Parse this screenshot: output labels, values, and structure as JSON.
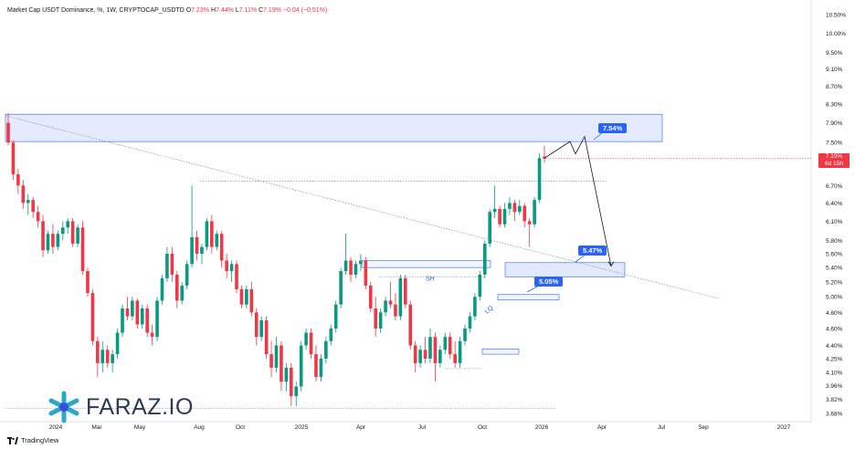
{
  "header": {
    "symbol": "Market Cap USDT Dominance, %, 1W, CRYPTOCAP_USDTD",
    "o_label": "O",
    "o_value": "7.23%",
    "h_label": "H",
    "h_value": "7.44%",
    "l_label": "L",
    "l_value": "7.11%",
    "c_label": "C",
    "c_value": "7.19%",
    "change": "−0.04 (−0.51%)"
  },
  "branding": {
    "logo_text": "FARAZ.IO",
    "tv_text": "TradingView"
  },
  "last_price": {
    "value": "7.19%",
    "countdown": "6d 15h"
  },
  "colors": {
    "up": "#089981",
    "down": "#f23645",
    "zone_fill": "#dbe4ff",
    "zone_stroke": "#2962ff",
    "callout": "#2962ff"
  },
  "chart_data": {
    "type": "candlestick",
    "title": "",
    "scale": "log",
    "ylim": [
      3.68,
      10.5
    ],
    "y_ticks": [
      "10.50%",
      "10.00%",
      "9.50%",
      "9.10%",
      "8.70%",
      "8.30%",
      "7.90%",
      "7.50%",
      "7.19%",
      "6.70%",
      "6.40%",
      "6.10%",
      "5.80%",
      "5.60%",
      "5.40%",
      "5.20%",
      "5.00%",
      "4.80%",
      "4.60%",
      "4.40%",
      "4.25%",
      "4.10%",
      "3.96%",
      "3.82%",
      "3.68%"
    ],
    "x_ticks": [
      "2024",
      "Mar",
      "May",
      "Aug",
      "Oct",
      "2025",
      "Apr",
      "Jul",
      "Oct",
      "2026",
      "Apr",
      "Jul",
      "Sep",
      "2027"
    ],
    "candles": [
      {
        "o": 7.9,
        "h": 8.1,
        "l": 7.45,
        "c": 7.5
      },
      {
        "o": 7.5,
        "h": 7.55,
        "l": 6.8,
        "c": 6.9
      },
      {
        "o": 6.9,
        "h": 7.0,
        "l": 6.55,
        "c": 6.7
      },
      {
        "o": 6.7,
        "h": 6.8,
        "l": 6.3,
        "c": 6.4
      },
      {
        "o": 6.4,
        "h": 6.55,
        "l": 6.2,
        "c": 6.45
      },
      {
        "o": 6.45,
        "h": 6.5,
        "l": 6.15,
        "c": 6.25
      },
      {
        "o": 6.25,
        "h": 6.35,
        "l": 6.0,
        "c": 6.1
      },
      {
        "o": 6.1,
        "h": 6.2,
        "l": 5.55,
        "c": 5.65
      },
      {
        "o": 5.65,
        "h": 5.95,
        "l": 5.6,
        "c": 5.9
      },
      {
        "o": 5.9,
        "h": 6.05,
        "l": 5.6,
        "c": 5.7
      },
      {
        "o": 5.7,
        "h": 5.95,
        "l": 5.65,
        "c": 5.9
      },
      {
        "o": 5.9,
        "h": 6.1,
        "l": 5.8,
        "c": 6.0
      },
      {
        "o": 6.0,
        "h": 6.15,
        "l": 5.9,
        "c": 6.1
      },
      {
        "o": 6.1,
        "h": 6.15,
        "l": 5.7,
        "c": 5.75
      },
      {
        "o": 5.75,
        "h": 6.05,
        "l": 5.7,
        "c": 6.0
      },
      {
        "o": 6.0,
        "h": 6.1,
        "l": 5.3,
        "c": 5.35
      },
      {
        "o": 5.35,
        "h": 5.4,
        "l": 5.0,
        "c": 5.05
      },
      {
        "o": 5.05,
        "h": 5.1,
        "l": 4.4,
        "c": 4.45
      },
      {
        "o": 4.45,
        "h": 4.5,
        "l": 4.05,
        "c": 4.2
      },
      {
        "o": 4.2,
        "h": 4.45,
        "l": 4.1,
        "c": 4.35
      },
      {
        "o": 4.35,
        "h": 4.4,
        "l": 4.15,
        "c": 4.2
      },
      {
        "o": 4.2,
        "h": 4.35,
        "l": 4.1,
        "c": 4.3
      },
      {
        "o": 4.3,
        "h": 4.6,
        "l": 4.25,
        "c": 4.55
      },
      {
        "o": 4.55,
        "h": 4.9,
        "l": 4.5,
        "c": 4.85
      },
      {
        "o": 4.85,
        "h": 5.0,
        "l": 4.7,
        "c": 4.75
      },
      {
        "o": 4.75,
        "h": 5.0,
        "l": 4.7,
        "c": 4.95
      },
      {
        "o": 4.95,
        "h": 4.98,
        "l": 4.6,
        "c": 4.65
      },
      {
        "o": 4.65,
        "h": 4.9,
        "l": 4.6,
        "c": 4.85
      },
      {
        "o": 4.85,
        "h": 4.9,
        "l": 4.5,
        "c": 4.55
      },
      {
        "o": 4.55,
        "h": 4.65,
        "l": 4.4,
        "c": 4.5
      },
      {
        "o": 4.5,
        "h": 5.0,
        "l": 4.45,
        "c": 4.95
      },
      {
        "o": 4.95,
        "h": 5.3,
        "l": 4.9,
        "c": 5.25
      },
      {
        "o": 5.25,
        "h": 5.7,
        "l": 5.2,
        "c": 5.6
      },
      {
        "o": 5.6,
        "h": 5.7,
        "l": 5.2,
        "c": 5.3
      },
      {
        "o": 5.3,
        "h": 5.35,
        "l": 4.85,
        "c": 4.95
      },
      {
        "o": 4.95,
        "h": 5.2,
        "l": 4.9,
        "c": 5.15
      },
      {
        "o": 5.15,
        "h": 5.5,
        "l": 5.1,
        "c": 5.45
      },
      {
        "o": 5.45,
        "h": 6.7,
        "l": 5.4,
        "c": 5.85
      },
      {
        "o": 5.85,
        "h": 5.95,
        "l": 5.5,
        "c": 5.6
      },
      {
        "o": 5.6,
        "h": 5.75,
        "l": 5.45,
        "c": 5.7
      },
      {
        "o": 5.7,
        "h": 6.15,
        "l": 5.65,
        "c": 6.1
      },
      {
        "o": 6.1,
        "h": 6.2,
        "l": 5.6,
        "c": 5.7
      },
      {
        "o": 5.7,
        "h": 5.95,
        "l": 5.65,
        "c": 5.9
      },
      {
        "o": 5.9,
        "h": 5.95,
        "l": 5.4,
        "c": 5.5
      },
      {
        "o": 5.5,
        "h": 5.6,
        "l": 5.25,
        "c": 5.35
      },
      {
        "o": 5.35,
        "h": 5.5,
        "l": 5.2,
        "c": 5.45
      },
      {
        "o": 5.45,
        "h": 5.5,
        "l": 5.05,
        "c": 5.1
      },
      {
        "o": 5.1,
        "h": 5.15,
        "l": 4.85,
        "c": 4.9
      },
      {
        "o": 4.9,
        "h": 5.15,
        "l": 4.85,
        "c": 5.1
      },
      {
        "o": 5.1,
        "h": 5.2,
        "l": 4.75,
        "c": 4.8
      },
      {
        "o": 4.8,
        "h": 4.85,
        "l": 4.4,
        "c": 4.5
      },
      {
        "o": 4.5,
        "h": 4.75,
        "l": 4.45,
        "c": 4.7
      },
      {
        "o": 4.7,
        "h": 4.75,
        "l": 4.25,
        "c": 4.3
      },
      {
        "o": 4.3,
        "h": 4.45,
        "l": 4.05,
        "c": 4.15
      },
      {
        "o": 4.15,
        "h": 4.5,
        "l": 4.1,
        "c": 4.4
      },
      {
        "o": 4.4,
        "h": 4.45,
        "l": 3.9,
        "c": 4.0
      },
      {
        "o": 4.0,
        "h": 4.2,
        "l": 3.9,
        "c": 4.15
      },
      {
        "o": 4.15,
        "h": 4.2,
        "l": 3.75,
        "c": 3.85
      },
      {
        "o": 3.85,
        "h": 4.0,
        "l": 3.75,
        "c": 3.95
      },
      {
        "o": 3.95,
        "h": 4.45,
        "l": 3.9,
        "c": 4.4
      },
      {
        "o": 4.4,
        "h": 4.6,
        "l": 4.35,
        "c": 4.55
      },
      {
        "o": 4.55,
        "h": 4.6,
        "l": 4.25,
        "c": 4.3
      },
      {
        "o": 4.3,
        "h": 4.4,
        "l": 4.0,
        "c": 4.05
      },
      {
        "o": 4.05,
        "h": 4.3,
        "l": 4.0,
        "c": 4.25
      },
      {
        "o": 4.25,
        "h": 4.5,
        "l": 4.2,
        "c": 4.45
      },
      {
        "o": 4.45,
        "h": 4.65,
        "l": 4.4,
        "c": 4.6
      },
      {
        "o": 4.6,
        "h": 4.95,
        "l": 4.55,
        "c": 4.9
      },
      {
        "o": 4.9,
        "h": 5.4,
        "l": 4.85,
        "c": 5.35
      },
      {
        "o": 5.35,
        "h": 5.9,
        "l": 5.3,
        "c": 5.5
      },
      {
        "o": 5.5,
        "h": 5.55,
        "l": 5.2,
        "c": 5.3
      },
      {
        "o": 5.3,
        "h": 5.5,
        "l": 5.25,
        "c": 5.45
      },
      {
        "o": 5.45,
        "h": 5.6,
        "l": 5.35,
        "c": 5.5
      },
      {
        "o": 5.5,
        "h": 5.55,
        "l": 5.1,
        "c": 5.15
      },
      {
        "o": 5.15,
        "h": 5.2,
        "l": 4.8,
        "c": 4.85
      },
      {
        "o": 4.85,
        "h": 5.0,
        "l": 4.5,
        "c": 4.6
      },
      {
        "o": 4.6,
        "h": 4.85,
        "l": 4.55,
        "c": 4.8
      },
      {
        "o": 4.8,
        "h": 5.0,
        "l": 4.75,
        "c": 4.95
      },
      {
        "o": 4.95,
        "h": 5.2,
        "l": 4.85,
        "c": 4.9
      },
      {
        "o": 4.9,
        "h": 5.05,
        "l": 4.7,
        "c": 4.75
      },
      {
        "o": 4.75,
        "h": 5.3,
        "l": 4.7,
        "c": 5.25
      },
      {
        "o": 5.25,
        "h": 5.3,
        "l": 4.85,
        "c": 4.9
      },
      {
        "o": 4.9,
        "h": 4.95,
        "l": 4.35,
        "c": 4.4
      },
      {
        "o": 4.4,
        "h": 4.45,
        "l": 4.1,
        "c": 4.2
      },
      {
        "o": 4.2,
        "h": 4.4,
        "l": 4.15,
        "c": 4.35
      },
      {
        "o": 4.35,
        "h": 4.5,
        "l": 4.2,
        "c": 4.25
      },
      {
        "o": 4.25,
        "h": 4.6,
        "l": 4.2,
        "c": 4.5
      },
      {
        "o": 4.5,
        "h": 4.55,
        "l": 4.0,
        "c": 4.2
      },
      {
        "o": 4.2,
        "h": 4.4,
        "l": 4.15,
        "c": 4.35
      },
      {
        "o": 4.35,
        "h": 4.55,
        "l": 4.3,
        "c": 4.5
      },
      {
        "o": 4.5,
        "h": 4.55,
        "l": 4.25,
        "c": 4.3
      },
      {
        "o": 4.3,
        "h": 4.45,
        "l": 4.15,
        "c": 4.2
      },
      {
        "o": 4.2,
        "h": 4.5,
        "l": 4.15,
        "c": 4.45
      },
      {
        "o": 4.45,
        "h": 4.65,
        "l": 4.4,
        "c": 4.6
      },
      {
        "o": 4.6,
        "h": 4.8,
        "l": 4.55,
        "c": 4.75
      },
      {
        "o": 4.75,
        "h": 5.05,
        "l": 4.7,
        "c": 5.0
      },
      {
        "o": 5.0,
        "h": 5.35,
        "l": 4.95,
        "c": 5.3
      },
      {
        "o": 5.3,
        "h": 5.8,
        "l": 5.25,
        "c": 5.75
      },
      {
        "o": 5.75,
        "h": 6.3,
        "l": 5.7,
        "c": 6.25
      },
      {
        "o": 6.25,
        "h": 6.7,
        "l": 6.15,
        "c": 6.3
      },
      {
        "o": 6.3,
        "h": 6.35,
        "l": 6.0,
        "c": 6.05
      },
      {
        "o": 6.05,
        "h": 6.4,
        "l": 6.0,
        "c": 6.3
      },
      {
        "o": 6.3,
        "h": 6.5,
        "l": 6.2,
        "c": 6.4
      },
      {
        "o": 6.4,
        "h": 6.45,
        "l": 6.1,
        "c": 6.25
      },
      {
        "o": 6.25,
        "h": 6.45,
        "l": 6.2,
        "c": 6.35
      },
      {
        "o": 6.35,
        "h": 6.4,
        "l": 6.0,
        "c": 6.1
      },
      {
        "o": 6.1,
        "h": 6.15,
        "l": 5.7,
        "c": 6.05
      },
      {
        "o": 6.05,
        "h": 6.5,
        "l": 6.0,
        "c": 6.45
      },
      {
        "o": 6.45,
        "h": 7.3,
        "l": 6.4,
        "c": 7.2
      },
      {
        "o": 7.23,
        "h": 7.44,
        "l": 7.11,
        "c": 7.19
      }
    ],
    "annotations": {
      "supply_zone": {
        "y_low": 7.52,
        "y_high": 8.08
      },
      "zones": [
        {
          "y_low": 5.4,
          "y_high": 5.5
        },
        {
          "y_low": 5.27,
          "y_high": 5.47
        },
        {
          "y_low": 4.96,
          "y_high": 5.03
        },
        {
          "y_low": 4.3,
          "y_high": 4.36
        }
      ],
      "callouts": [
        "7.54%",
        "5.47%",
        "5.05%"
      ],
      "labels": [
        "SH",
        "LQ"
      ]
    }
  }
}
